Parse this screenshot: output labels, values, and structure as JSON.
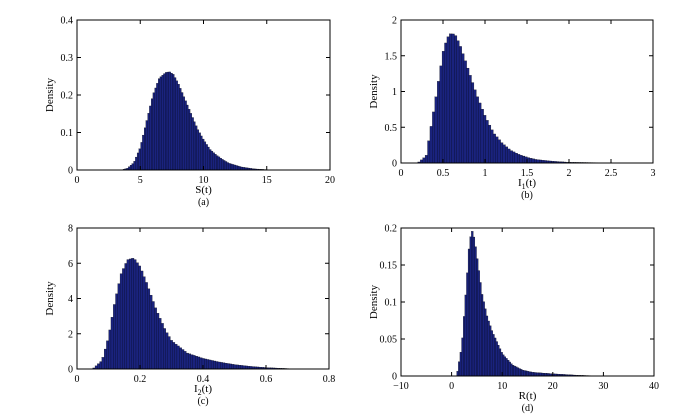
{
  "chart_data": [
    {
      "type": "bar",
      "panel": "(a)",
      "ylabel": "Density",
      "xlabel_main": "S",
      "xlabel_sub": "",
      "xlabel_tail": "(t)",
      "xlim": [
        0,
        20
      ],
      "ylim": [
        0,
        0.4
      ],
      "xticks": [
        "0",
        "5",
        "10",
        "15",
        "20"
      ],
      "yticks": [
        "0",
        "0.1",
        "0.2",
        "0.3",
        "0.4"
      ],
      "bar_color": "#1a237e",
      "density_curve": {
        "x": [
          3.5,
          4.0,
          4.5,
          5.0,
          5.5,
          6.0,
          6.5,
          7.0,
          7.3,
          7.6,
          8.0,
          8.5,
          9.0,
          9.5,
          10.0,
          10.5,
          11.0,
          11.5,
          12.0,
          13.0,
          14.0,
          15.0,
          16.0
        ],
        "values": [
          0.0,
          0.005,
          0.02,
          0.06,
          0.13,
          0.2,
          0.245,
          0.26,
          0.262,
          0.255,
          0.23,
          0.19,
          0.15,
          0.11,
          0.08,
          0.055,
          0.04,
          0.028,
          0.018,
          0.008,
          0.003,
          0.001,
          0.0
        ]
      }
    },
    {
      "type": "bar",
      "panel": "(b)",
      "ylabel": "Density",
      "xlabel_main": "I",
      "xlabel_sub": "1",
      "xlabel_tail": "(t)",
      "xlim": [
        0,
        3
      ],
      "ylim": [
        0,
        2
      ],
      "xticks": [
        "0",
        "0.5",
        "1",
        "1.5",
        "2",
        "2.5",
        "3"
      ],
      "yticks": [
        "0",
        "0.5",
        "1",
        "1.5",
        "2"
      ],
      "bar_color": "#1a237e",
      "density_curve": {
        "x": [
          0.2,
          0.3,
          0.4,
          0.5,
          0.55,
          0.6,
          0.65,
          0.7,
          0.8,
          0.9,
          1.0,
          1.1,
          1.2,
          1.3,
          1.4,
          1.5,
          1.6,
          1.8,
          2.0,
          2.5,
          2.8
        ],
        "values": [
          0.0,
          0.1,
          0.8,
          1.55,
          1.75,
          1.82,
          1.78,
          1.65,
          1.3,
          0.95,
          0.65,
          0.42,
          0.28,
          0.18,
          0.12,
          0.08,
          0.05,
          0.025,
          0.01,
          0.003,
          0.0
        ]
      }
    },
    {
      "type": "bar",
      "panel": "(c)",
      "ylabel": "Density",
      "xlabel_main": "I",
      "xlabel_sub": "2",
      "xlabel_tail": "(t)",
      "xlim": [
        0,
        0.8
      ],
      "ylim": [
        0,
        8
      ],
      "xticks": [
        "0",
        "0.2",
        "0.4",
        "0.6",
        "0.8"
      ],
      "yticks": [
        "0",
        "2",
        "4",
        "6",
        "8"
      ],
      "bar_color": "#1a237e",
      "density_curve": {
        "x": [
          0.05,
          0.08,
          0.1,
          0.12,
          0.14,
          0.16,
          0.18,
          0.2,
          0.22,
          0.25,
          0.28,
          0.3,
          0.35,
          0.4,
          0.45,
          0.5,
          0.55,
          0.6,
          0.7
        ],
        "values": [
          0.0,
          0.5,
          1.8,
          3.8,
          5.4,
          6.2,
          6.3,
          5.8,
          4.9,
          3.4,
          2.2,
          1.6,
          0.9,
          0.6,
          0.4,
          0.25,
          0.15,
          0.08,
          0.0
        ]
      }
    },
    {
      "type": "bar",
      "panel": "(d)",
      "ylabel": "Density",
      "xlabel_main": "R",
      "xlabel_sub": "",
      "xlabel_tail": "(t)",
      "xlim": [
        -10,
        40
      ],
      "ylim": [
        0,
        0.2
      ],
      "xticks": [
        "−10",
        "0",
        "10",
        "20",
        "30",
        "40"
      ],
      "yticks": [
        "0",
        "0.05",
        "0.1",
        "0.15",
        "0.2"
      ],
      "bar_color": "#1a237e",
      "density_curve": {
        "x": [
          1.0,
          2.0,
          3.0,
          3.5,
          4.0,
          4.5,
          5.0,
          6.0,
          7.0,
          8.0,
          9.0,
          10.0,
          12.0,
          14.0,
          16.0,
          18.0,
          20.0,
          25.0,
          30.0
        ],
        "values": [
          0.0,
          0.04,
          0.13,
          0.18,
          0.197,
          0.185,
          0.16,
          0.11,
          0.08,
          0.06,
          0.045,
          0.03,
          0.015,
          0.008,
          0.005,
          0.004,
          0.003,
          0.001,
          0.0
        ]
      }
    }
  ]
}
